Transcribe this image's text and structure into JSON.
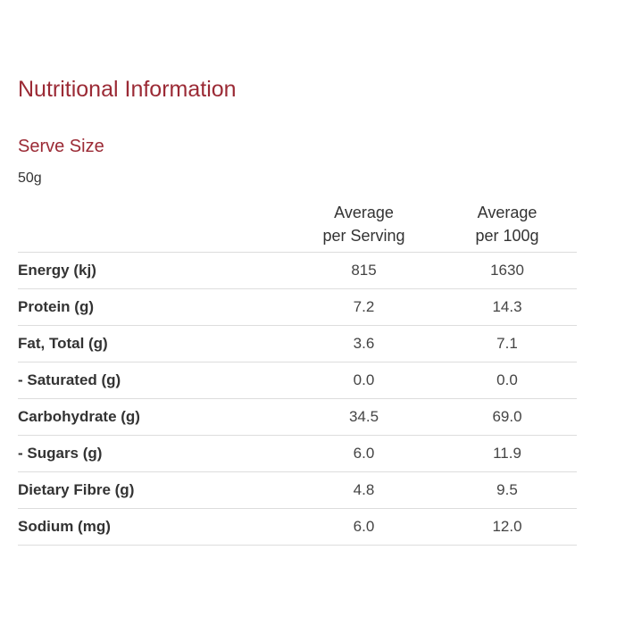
{
  "title": "Nutritional Information",
  "serve": {
    "heading": "Serve Size",
    "value": "50g"
  },
  "table": {
    "headers": {
      "label": "",
      "per_serving_line1": "Average",
      "per_serving_line2": "per Serving",
      "per_100g_line1": "Average",
      "per_100g_line2": "per 100g"
    },
    "rows": [
      {
        "label": "Energy (kj)",
        "per_serving": "815",
        "per_100g": "1630"
      },
      {
        "label": "Protein (g)",
        "per_serving": "7.2",
        "per_100g": "14.3"
      },
      {
        "label": "Fat, Total (g)",
        "per_serving": "3.6",
        "per_100g": "7.1"
      },
      {
        "label": "- Saturated (g)",
        "per_serving": "0.0",
        "per_100g": "0.0"
      },
      {
        "label": "Carbohydrate (g)",
        "per_serving": "34.5",
        "per_100g": "69.0"
      },
      {
        "label": "- Sugars (g)",
        "per_serving": "6.0",
        "per_100g": "11.9"
      },
      {
        "label": "Dietary Fibre (g)",
        "per_serving": "4.8",
        "per_100g": "9.5"
      },
      {
        "label": "Sodium (mg)",
        "per_serving": "6.0",
        "per_100g": "12.0"
      }
    ]
  },
  "colors": {
    "heading": "#9b2a35",
    "text": "#333333",
    "divider": "#dddddd"
  }
}
